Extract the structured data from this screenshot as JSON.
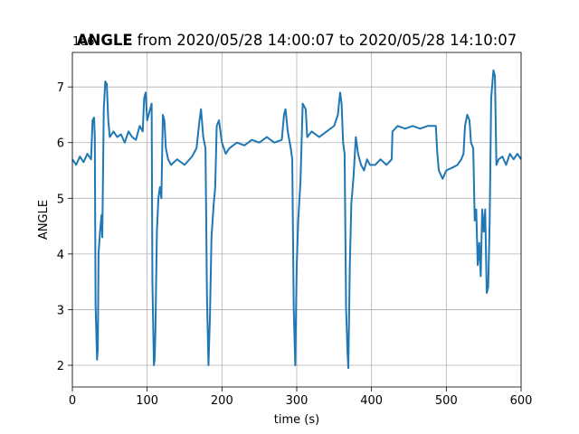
{
  "chart_data": {
    "type": "line",
    "title_bold": "ANGLE",
    "title": "from 2020/05/28 14:00:07 to 2020/05/28 14:10:07",
    "x_label": "time (s)",
    "y_label": "ANGLE",
    "y_offset_label": "1e6",
    "color": "#1f77b4",
    "grid": true,
    "xlim": [
      0,
      600
    ],
    "xticks": [
      0,
      100,
      200,
      300,
      400,
      500,
      600
    ],
    "ylim": [
      1.61,
      7.62
    ],
    "yticks": [
      2,
      3,
      4,
      5,
      6,
      7
    ],
    "x": [
      0,
      5,
      10,
      15,
      20,
      25,
      27,
      29,
      30,
      31,
      33,
      34,
      35,
      37,
      39,
      40,
      42,
      44,
      46,
      48,
      50,
      55,
      60,
      65,
      70,
      75,
      80,
      85,
      90,
      94,
      96,
      98,
      100,
      104,
      106,
      107,
      109,
      110,
      111,
      113,
      115,
      117,
      119,
      121,
      123,
      125,
      128,
      132,
      140,
      150,
      160,
      166,
      170,
      172,
      175,
      178,
      180,
      182,
      184,
      186,
      189,
      191,
      193,
      196,
      200,
      205,
      210,
      220,
      230,
      240,
      250,
      260,
      270,
      280,
      283,
      285,
      288,
      292,
      294,
      296,
      298,
      300,
      302,
      305,
      308,
      312,
      314,
      320,
      330,
      340,
      350,
      355,
      358,
      360,
      362,
      364,
      366,
      368,
      369,
      371,
      373,
      376,
      379,
      382,
      386,
      390,
      394,
      398,
      405,
      412,
      420,
      427,
      428,
      435,
      445,
      455,
      465,
      475,
      486,
      488,
      490,
      495,
      500,
      508,
      515,
      520,
      523,
      525,
      528,
      531,
      533,
      536,
      538,
      540,
      542,
      544,
      546,
      548,
      550,
      552,
      554,
      556,
      558,
      560,
      563,
      565,
      567,
      570,
      575,
      580,
      585,
      590,
      595,
      600
    ],
    "values": [
      5.7,
      5.6,
      5.75,
      5.65,
      5.8,
      5.7,
      6.4,
      6.45,
      6.1,
      3.1,
      2.1,
      2.3,
      4.0,
      4.4,
      4.7,
      4.3,
      6.6,
      7.1,
      7.05,
      6.4,
      6.1,
      6.2,
      6.1,
      6.15,
      6.0,
      6.2,
      6.1,
      6.05,
      6.3,
      6.2,
      6.8,
      6.9,
      6.4,
      6.6,
      6.7,
      3.5,
      2.0,
      2.1,
      2.6,
      4.4,
      5.0,
      5.2,
      5.0,
      6.5,
      6.4,
      5.9,
      5.7,
      5.6,
      5.7,
      5.6,
      5.75,
      5.9,
      6.4,
      6.6,
      6.1,
      5.9,
      3.2,
      2.0,
      2.9,
      4.3,
      4.9,
      5.2,
      6.3,
      6.4,
      6.0,
      5.8,
      5.9,
      6.0,
      5.95,
      6.05,
      6.0,
      6.1,
      6.0,
      6.05,
      6.5,
      6.6,
      6.2,
      5.9,
      5.7,
      3.0,
      2.0,
      3.8,
      4.6,
      5.3,
      6.7,
      6.6,
      6.1,
      6.2,
      6.1,
      6.2,
      6.3,
      6.5,
      6.9,
      6.7,
      6.0,
      5.8,
      3.0,
      2.2,
      1.95,
      3.8,
      4.9,
      5.4,
      6.1,
      5.8,
      5.6,
      5.5,
      5.7,
      5.6,
      5.6,
      5.7,
      5.6,
      5.7,
      6.2,
      6.3,
      6.25,
      6.3,
      6.25,
      6.3,
      6.3,
      5.8,
      5.5,
      5.35,
      5.5,
      5.55,
      5.6,
      5.7,
      5.8,
      6.3,
      6.5,
      6.4,
      6.0,
      5.9,
      4.6,
      4.8,
      3.8,
      4.2,
      3.6,
      4.8,
      4.4,
      4.8,
      3.3,
      3.4,
      4.6,
      6.8,
      7.3,
      7.2,
      5.6,
      5.7,
      5.75,
      5.6,
      5.8,
      5.7,
      5.8,
      5.7
    ]
  }
}
